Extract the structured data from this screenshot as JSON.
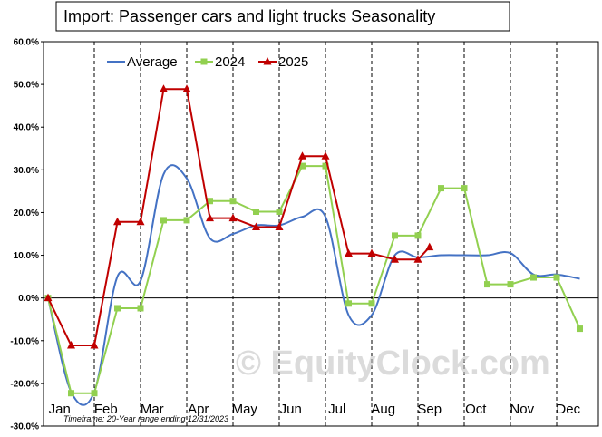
{
  "chart_data": {
    "type": "line",
    "title": "Import: Passenger cars and light trucks Seasonality",
    "xlabel": "",
    "ylabel": "",
    "ylim": [
      -30,
      60
    ],
    "yticks": [
      -30,
      -20,
      -10,
      0,
      10,
      20,
      30,
      40,
      50,
      60
    ],
    "ytick_labels": [
      "-30.0%",
      "-20.0%",
      "-10.0%",
      "0.0%",
      "10.0%",
      "20.0%",
      "30.0%",
      "40.0%",
      "50.0%",
      "60.0%"
    ],
    "x_tick_labels": [
      "Jan",
      "Feb",
      "Mar",
      "Apr",
      "May",
      "Jun",
      "Jul",
      "Aug",
      "Sep",
      "Oct",
      "Nov",
      "Dec"
    ],
    "grid": "vertical dashed month separators",
    "legend_position": "top-left",
    "footnote": "Timeframe: 20-Year range ending 12/31/2023",
    "watermark": "© EquityClock.com",
    "series": [
      {
        "name": "Average",
        "color": "#4472c4",
        "style": "smooth",
        "x": [
          0,
          0.5,
          1,
          1.5,
          2,
          2.5,
          3,
          3.5,
          4,
          4.5,
          5,
          5.5,
          6,
          6.5,
          7,
          7.5,
          8,
          8.5,
          9,
          9.5,
          10,
          10.5,
          11,
          11.5
        ],
        "values": [
          0,
          -22,
          -22,
          5,
          4,
          29,
          28,
          14,
          15,
          17,
          17,
          19,
          19,
          -4,
          -4,
          10,
          9.5,
          10,
          10,
          10,
          10.5,
          5.5,
          5.5,
          4.5
        ]
      },
      {
        "name": "2024",
        "color": "#92d050",
        "marker": "square",
        "x": [
          0,
          0.5,
          1,
          1.5,
          2,
          2.5,
          3,
          3.5,
          4,
          4.5,
          5,
          5.5,
          6,
          6.5,
          7,
          7.5,
          8,
          8.5,
          9,
          9.5,
          10,
          10.5,
          11,
          11.5
        ],
        "values": [
          0,
          -22.3,
          -22.3,
          -2.4,
          -2.4,
          18.2,
          18.2,
          22.7,
          22.7,
          20.2,
          20.2,
          30.9,
          30.9,
          -1.3,
          -1.3,
          14.6,
          14.6,
          25.7,
          25.7,
          3.2,
          3.2,
          4.8,
          4.8,
          -7.2
        ]
      },
      {
        "name": "2025",
        "color": "#c00000",
        "marker": "triangle",
        "x": [
          0,
          0.5,
          1,
          1.5,
          2,
          2.5,
          3,
          3.5,
          4,
          4.5,
          5,
          5.5,
          6,
          6.5,
          7,
          7.5,
          8
        ],
        "values": [
          0,
          -11.1,
          -11.1,
          17.8,
          17.8,
          48.9,
          48.9,
          18.7,
          18.7,
          16.6,
          16.6,
          33.2,
          33.2,
          10.4,
          10.4,
          9.0,
          9.0
        ]
      },
      {
        "name": "2025",
        "color": "#c00000",
        "marker": "triangle",
        "x": [
          8.25
        ],
        "values": [
          11.9
        ],
        "continues_previous": true
      }
    ]
  }
}
